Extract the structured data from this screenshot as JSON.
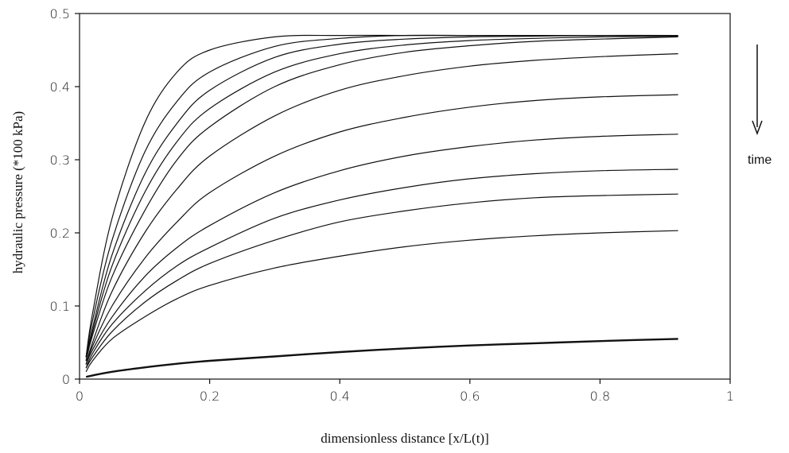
{
  "chart_data": {
    "type": "line",
    "xlabel": "dimensionless distance [x/L(t)]",
    "ylabel": "hydraulic pressure (*100 kPa)",
    "xlim": [
      0,
      1
    ],
    "ylim": [
      0,
      0.5
    ],
    "xticks": [
      "0",
      "0.2",
      "0.4",
      "0.6",
      "0.8",
      "1"
    ],
    "yticks": [
      "0",
      "0.1",
      "0.2",
      "0.3",
      "0.4",
      "0.5"
    ],
    "annotation": "time",
    "annotation_arrow": "down",
    "grid": false,
    "x": [
      0.01,
      0.02,
      0.05,
      0.1,
      0.15,
      0.2,
      0.3,
      0.4,
      0.5,
      0.6,
      0.7,
      0.8,
      0.92
    ],
    "series": [
      {
        "values": [
          0.03,
          0.09,
          0.22,
          0.35,
          0.42,
          0.45,
          0.468,
          0.47,
          0.47,
          0.47,
          0.47,
          0.47,
          0.47
        ]
      },
      {
        "values": [
          0.03,
          0.08,
          0.19,
          0.31,
          0.38,
          0.42,
          0.455,
          0.466,
          0.47,
          0.47,
          0.47,
          0.47,
          0.47
        ]
      },
      {
        "values": [
          0.03,
          0.07,
          0.17,
          0.28,
          0.35,
          0.395,
          0.44,
          0.458,
          0.465,
          0.468,
          0.469,
          0.47,
          0.47
        ]
      },
      {
        "values": [
          0.025,
          0.065,
          0.155,
          0.255,
          0.325,
          0.37,
          0.42,
          0.445,
          0.457,
          0.463,
          0.466,
          0.468,
          0.469
        ]
      },
      {
        "values": [
          0.025,
          0.06,
          0.14,
          0.23,
          0.3,
          0.345,
          0.4,
          0.43,
          0.447,
          0.456,
          0.462,
          0.465,
          0.468
        ]
      },
      {
        "values": [
          0.02,
          0.05,
          0.12,
          0.2,
          0.26,
          0.305,
          0.36,
          0.395,
          0.415,
          0.428,
          0.436,
          0.441,
          0.445
        ]
      },
      {
        "values": [
          0.02,
          0.045,
          0.1,
          0.165,
          0.215,
          0.255,
          0.305,
          0.338,
          0.358,
          0.372,
          0.381,
          0.386,
          0.389
        ]
      },
      {
        "values": [
          0.02,
          0.04,
          0.085,
          0.14,
          0.18,
          0.21,
          0.255,
          0.285,
          0.305,
          0.318,
          0.327,
          0.332,
          0.335
        ]
      },
      {
        "values": [
          0.015,
          0.035,
          0.075,
          0.12,
          0.155,
          0.18,
          0.22,
          0.245,
          0.262,
          0.274,
          0.281,
          0.285,
          0.287
        ]
      },
      {
        "values": [
          0.015,
          0.03,
          0.065,
          0.105,
          0.135,
          0.158,
          0.19,
          0.215,
          0.23,
          0.241,
          0.248,
          0.251,
          0.253
        ]
      },
      {
        "values": [
          0.01,
          0.025,
          0.055,
          0.085,
          0.11,
          0.128,
          0.152,
          0.168,
          0.181,
          0.19,
          0.196,
          0.2,
          0.203
        ]
      },
      {
        "values": [
          0.003,
          0.005,
          0.01,
          0.016,
          0.021,
          0.025,
          0.031,
          0.037,
          0.042,
          0.046,
          0.049,
          0.052,
          0.055
        ],
        "emphasis": "thick"
      }
    ]
  }
}
